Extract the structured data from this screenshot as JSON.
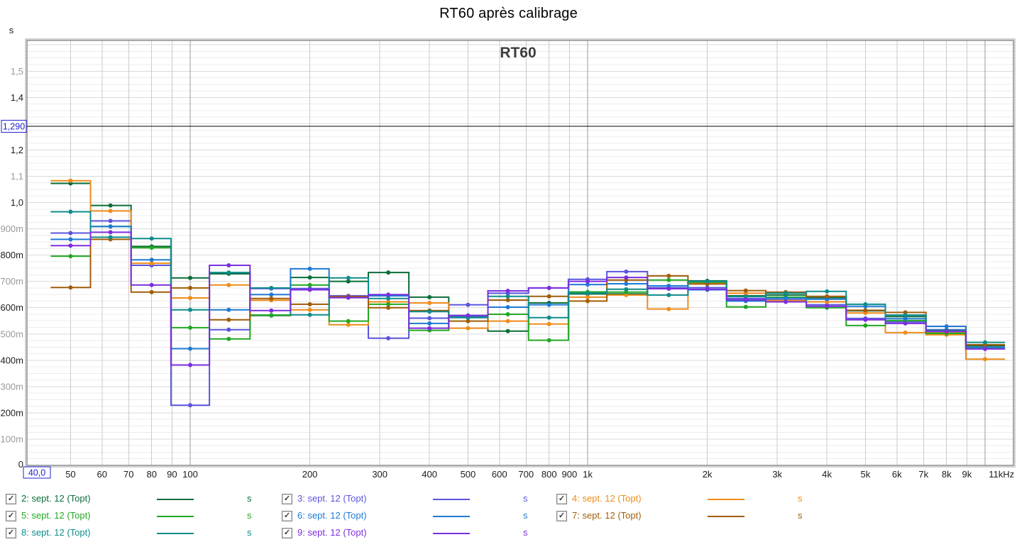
{
  "title": "RT60 après calibrage",
  "plot_title": "RT60",
  "y_axis": {
    "unit": "s",
    "zero_label": "0",
    "ticks": [
      {
        "ms": 100,
        "label": "100m",
        "muted": true
      },
      {
        "ms": 200,
        "label": "200m",
        "muted": false
      },
      {
        "ms": 300,
        "label": "300m",
        "muted": true
      },
      {
        "ms": 400,
        "label": "400m",
        "muted": false
      },
      {
        "ms": 500,
        "label": "500m",
        "muted": true
      },
      {
        "ms": 600,
        "label": "600m",
        "muted": false
      },
      {
        "ms": 700,
        "label": "700m",
        "muted": true
      },
      {
        "ms": 800,
        "label": "800m",
        "muted": false
      },
      {
        "ms": 900,
        "label": "900m",
        "muted": true
      },
      {
        "ms": 1000,
        "label": "1,0",
        "muted": false
      },
      {
        "ms": 1100,
        "label": "1,1",
        "muted": true
      },
      {
        "ms": 1200,
        "label": "1,2",
        "muted": false
      },
      {
        "ms": 1400,
        "label": "1,4",
        "muted": false
      },
      {
        "ms": 1500,
        "label": "1,5",
        "muted": true
      }
    ]
  },
  "x_axis": {
    "ticks": [
      {
        "hz": 50,
        "label": "50"
      },
      {
        "hz": 60,
        "label": "60"
      },
      {
        "hz": 70,
        "label": "70"
      },
      {
        "hz": 80,
        "label": "80"
      },
      {
        "hz": 90,
        "label": "90"
      },
      {
        "hz": 100,
        "label": "100"
      },
      {
        "hz": 200,
        "label": "200"
      },
      {
        "hz": 300,
        "label": "300"
      },
      {
        "hz": 400,
        "label": "400"
      },
      {
        "hz": 500,
        "label": "500"
      },
      {
        "hz": 600,
        "label": "600"
      },
      {
        "hz": 700,
        "label": "700"
      },
      {
        "hz": 800,
        "label": "800"
      },
      {
        "hz": 900,
        "label": "900"
      },
      {
        "hz": 1000,
        "label": "1k"
      },
      {
        "hz": 2000,
        "label": "2k"
      },
      {
        "hz": 3000,
        "label": "3k"
      },
      {
        "hz": 4000,
        "label": "4k"
      },
      {
        "hz": 5000,
        "label": "5k"
      },
      {
        "hz": 6000,
        "label": "6k"
      },
      {
        "hz": 7000,
        "label": "7k"
      },
      {
        "hz": 8000,
        "label": "8k"
      },
      {
        "hz": 9000,
        "label": "9k"
      },
      {
        "hz": 11000,
        "label": "11kHz"
      }
    ]
  },
  "cursor": {
    "x_label": "40,0",
    "y_label": "1,290",
    "x_hz": 40.0,
    "y_ms": 1290
  },
  "colors": {
    "cursor": "#2222cc",
    "grid_minor": "#ececec",
    "grid_major": "#dadada",
    "grid_vline": "#cbcbcb",
    "grid_vline_dark": "#9a9a9a",
    "frame": "#8e8e8e",
    "tick_dark": "#1c1c1c",
    "tick_muted": "#9a9a9a",
    "plot_title": "#3c3c3c"
  },
  "grid": {
    "minor_step_ms": 25,
    "vlines_hz": [
      50,
      60,
      70,
      80,
      90,
      100,
      200,
      300,
      400,
      500,
      600,
      700,
      800,
      900,
      1000,
      2000,
      3000,
      4000,
      5000,
      6000,
      7000,
      8000,
      9000,
      10000
    ],
    "dark_vlines_hz": [
      100,
      1000,
      10000
    ]
  },
  "chart_data": {
    "type": "line",
    "style": "third-octave-steps",
    "title": "RT60",
    "ylabel_unit": "s",
    "x_scale": "log",
    "xlim_hz": [
      38.8,
      11800
    ],
    "ylim_s": [
      0,
      1.617
    ],
    "x_hz": [
      50,
      63,
      80,
      100,
      125,
      160,
      200,
      250,
      315,
      400,
      500,
      630,
      800,
      1000,
      1250,
      1600,
      2000,
      2500,
      3150,
      4000,
      5000,
      6300,
      8000,
      10000
    ],
    "series": [
      {
        "id": "2",
        "label": "2: sept. 12 (Topt)",
        "color": "#0b6d38",
        "unit": "s",
        "rt60_ms": [
          1073,
          989,
          833,
          713,
          729,
          570,
          715,
          700,
          734,
          640,
          570,
          511,
          618,
          652,
          652,
          675,
          702,
          645,
          648,
          638,
          588,
          566,
          510,
          455
        ]
      },
      {
        "id": "3",
        "label": "3: sept. 12 (Topt)",
        "color": "#5a55dd",
        "unit": "s",
        "rt60_ms": [
          884,
          930,
          761,
          229,
          516,
          673,
          673,
          645,
          484,
          560,
          611,
          655,
          675,
          708,
          737,
          676,
          676,
          635,
          630,
          611,
          559,
          546,
          516,
          449
        ]
      },
      {
        "id": "4",
        "label": "4: sept. 12 (Topt)",
        "color": "#ef8c1a",
        "unit": "s",
        "rt60_ms": [
          1083,
          968,
          769,
          637,
          686,
          628,
          592,
          535,
          622,
          618,
          522,
          549,
          538,
          640,
          648,
          595,
          694,
          655,
          627,
          622,
          580,
          505,
          497,
          404
        ]
      },
      {
        "id": "5",
        "label": "5: sept. 12 (Topt)",
        "color": "#22a822",
        "unit": "s",
        "rt60_ms": [
          796,
          909,
          828,
          524,
          481,
          572,
          686,
          549,
          613,
          514,
          565,
          575,
          476,
          660,
          659,
          705,
          697,
          603,
          640,
          600,
          532,
          551,
          502,
          444
        ]
      },
      {
        "id": "6",
        "label": "6: sept. 12 (Topt)",
        "color": "#1f7ad4",
        "unit": "s",
        "rt60_ms": [
          860,
          909,
          782,
          444,
          592,
          650,
          748,
          640,
          645,
          540,
          568,
          602,
          611,
          688,
          691,
          683,
          668,
          625,
          636,
          632,
          605,
          558,
          529,
          449
        ]
      },
      {
        "id": "7",
        "label": "7: sept. 12 (Topt)",
        "color": "#a25d08",
        "unit": "s",
        "rt60_ms": [
          677,
          860,
          659,
          675,
          554,
          635,
          613,
          642,
          600,
          589,
          549,
          629,
          643,
          625,
          705,
          721,
          690,
          665,
          659,
          643,
          590,
          582,
          508,
          459
        ]
      },
      {
        "id": "8",
        "label": "8: sept. 12 (Topt)",
        "color": "#0e8c8c",
        "unit": "s",
        "rt60_ms": [
          965,
          868,
          863,
          592,
          734,
          675,
          573,
          713,
          635,
          585,
          562,
          643,
          562,
          655,
          670,
          648,
          700,
          642,
          655,
          662,
          613,
          572,
          514,
          468
        ]
      },
      {
        "id": "9",
        "label": "9: sept. 12 (Topt)",
        "color": "#7c2ede",
        "unit": "s",
        "rt60_ms": [
          836,
          887,
          686,
          382,
          761,
          589,
          668,
          638,
          650,
          522,
          570,
          664,
          675,
          700,
          715,
          672,
          670,
          630,
          622,
          605,
          554,
          540,
          510,
          443
        ]
      }
    ]
  },
  "legend": {
    "unit": "s",
    "columns": [
      [
        "2",
        "5",
        "8"
      ],
      [
        "3",
        "6",
        "9"
      ],
      [
        "4",
        "7"
      ]
    ]
  }
}
